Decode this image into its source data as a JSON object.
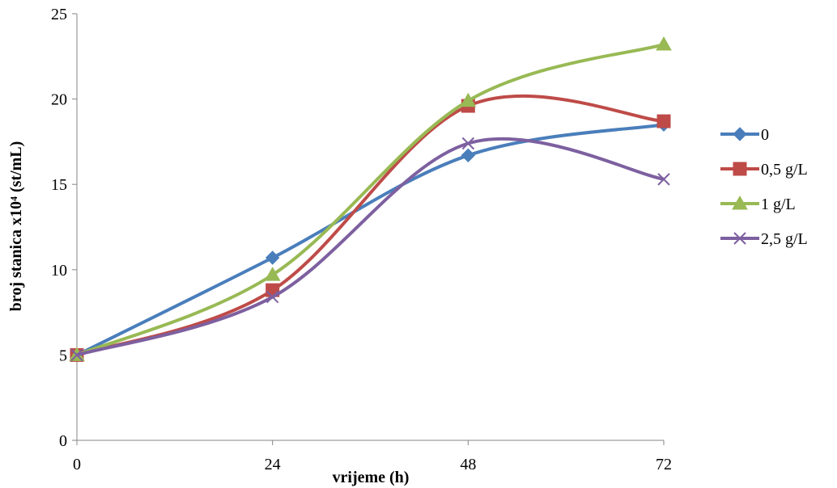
{
  "chart_data": {
    "type": "line",
    "x": [
      0,
      24,
      48,
      72
    ],
    "xlim": [
      0,
      72
    ],
    "ylim": [
      0,
      25
    ],
    "x_ticks": [
      "0",
      "24",
      "48",
      "72"
    ],
    "y_ticks": [
      "0",
      "5",
      "10",
      "15",
      "20",
      "25"
    ],
    "xlabel": "vrijeme (h)",
    "ylabel": "broj stanica x10⁴ (st/mL)",
    "grid": false,
    "legend_position": "right",
    "smoothed": true,
    "series": [
      {
        "name": "0",
        "values": [
          5.0,
          10.7,
          16.7,
          18.5
        ],
        "color": "#4a7ebb",
        "marker": "diamond"
      },
      {
        "name": "0,5 g/L",
        "values": [
          5.0,
          8.8,
          19.6,
          18.7
        ],
        "color": "#be4b48",
        "marker": "square"
      },
      {
        "name": "1 g/L",
        "values": [
          5.0,
          9.7,
          19.9,
          23.2
        ],
        "color": "#98b954",
        "marker": "triangle"
      },
      {
        "name": "2,5 g/L",
        "values": [
          5.0,
          8.4,
          17.4,
          15.3
        ],
        "color": "#7d60a0",
        "marker": "x"
      }
    ]
  }
}
